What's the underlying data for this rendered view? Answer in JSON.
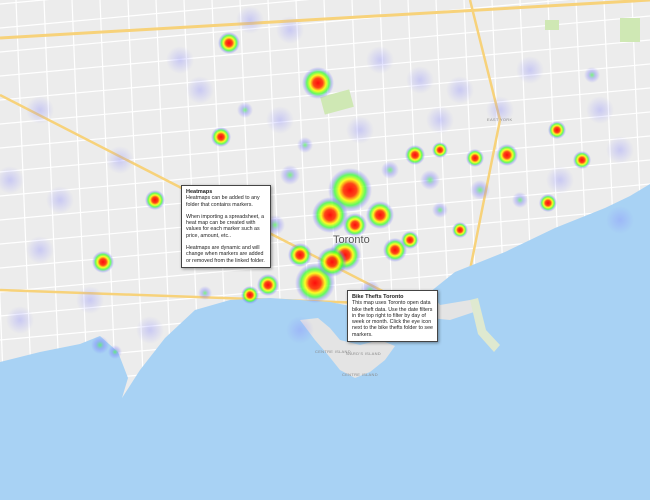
{
  "map": {
    "city_label": "Toronto",
    "island_labels": [
      "CENTRE ISLAND",
      "WARD'S ISLAND",
      "CENTRE ISLAND"
    ],
    "district_label": "EAST YORK",
    "colors": {
      "water": "#a8d2f4",
      "land": "#ececec",
      "road": "#ffffff",
      "highway": "#f7d27a",
      "park": "#cfe8b4",
      "heat_high": "#ff0000",
      "heat_mid": "#ffff00",
      "heat_low": "#00ff00",
      "heat_edge": "#6a6aff"
    }
  },
  "popups": {
    "heatmaps": {
      "title": "Heatmaps",
      "p1": "Heatmaps can be added to any folder that contains markers.",
      "p2": "When importing a spreadsheet, a heat map can be created with values for each marker such as price, amount, etc..",
      "p3": "Heatmaps are dynamic and will change when markers are added or removed from the linked folder."
    },
    "bike_thefts": {
      "title": "Bike Thefts Toronto",
      "body": "This map uses Toronto open data bike theft data. Use the date filters in the top right to filter by day of week or month. Click the eye icon next to the bike thefts folder to see markers."
    }
  }
}
